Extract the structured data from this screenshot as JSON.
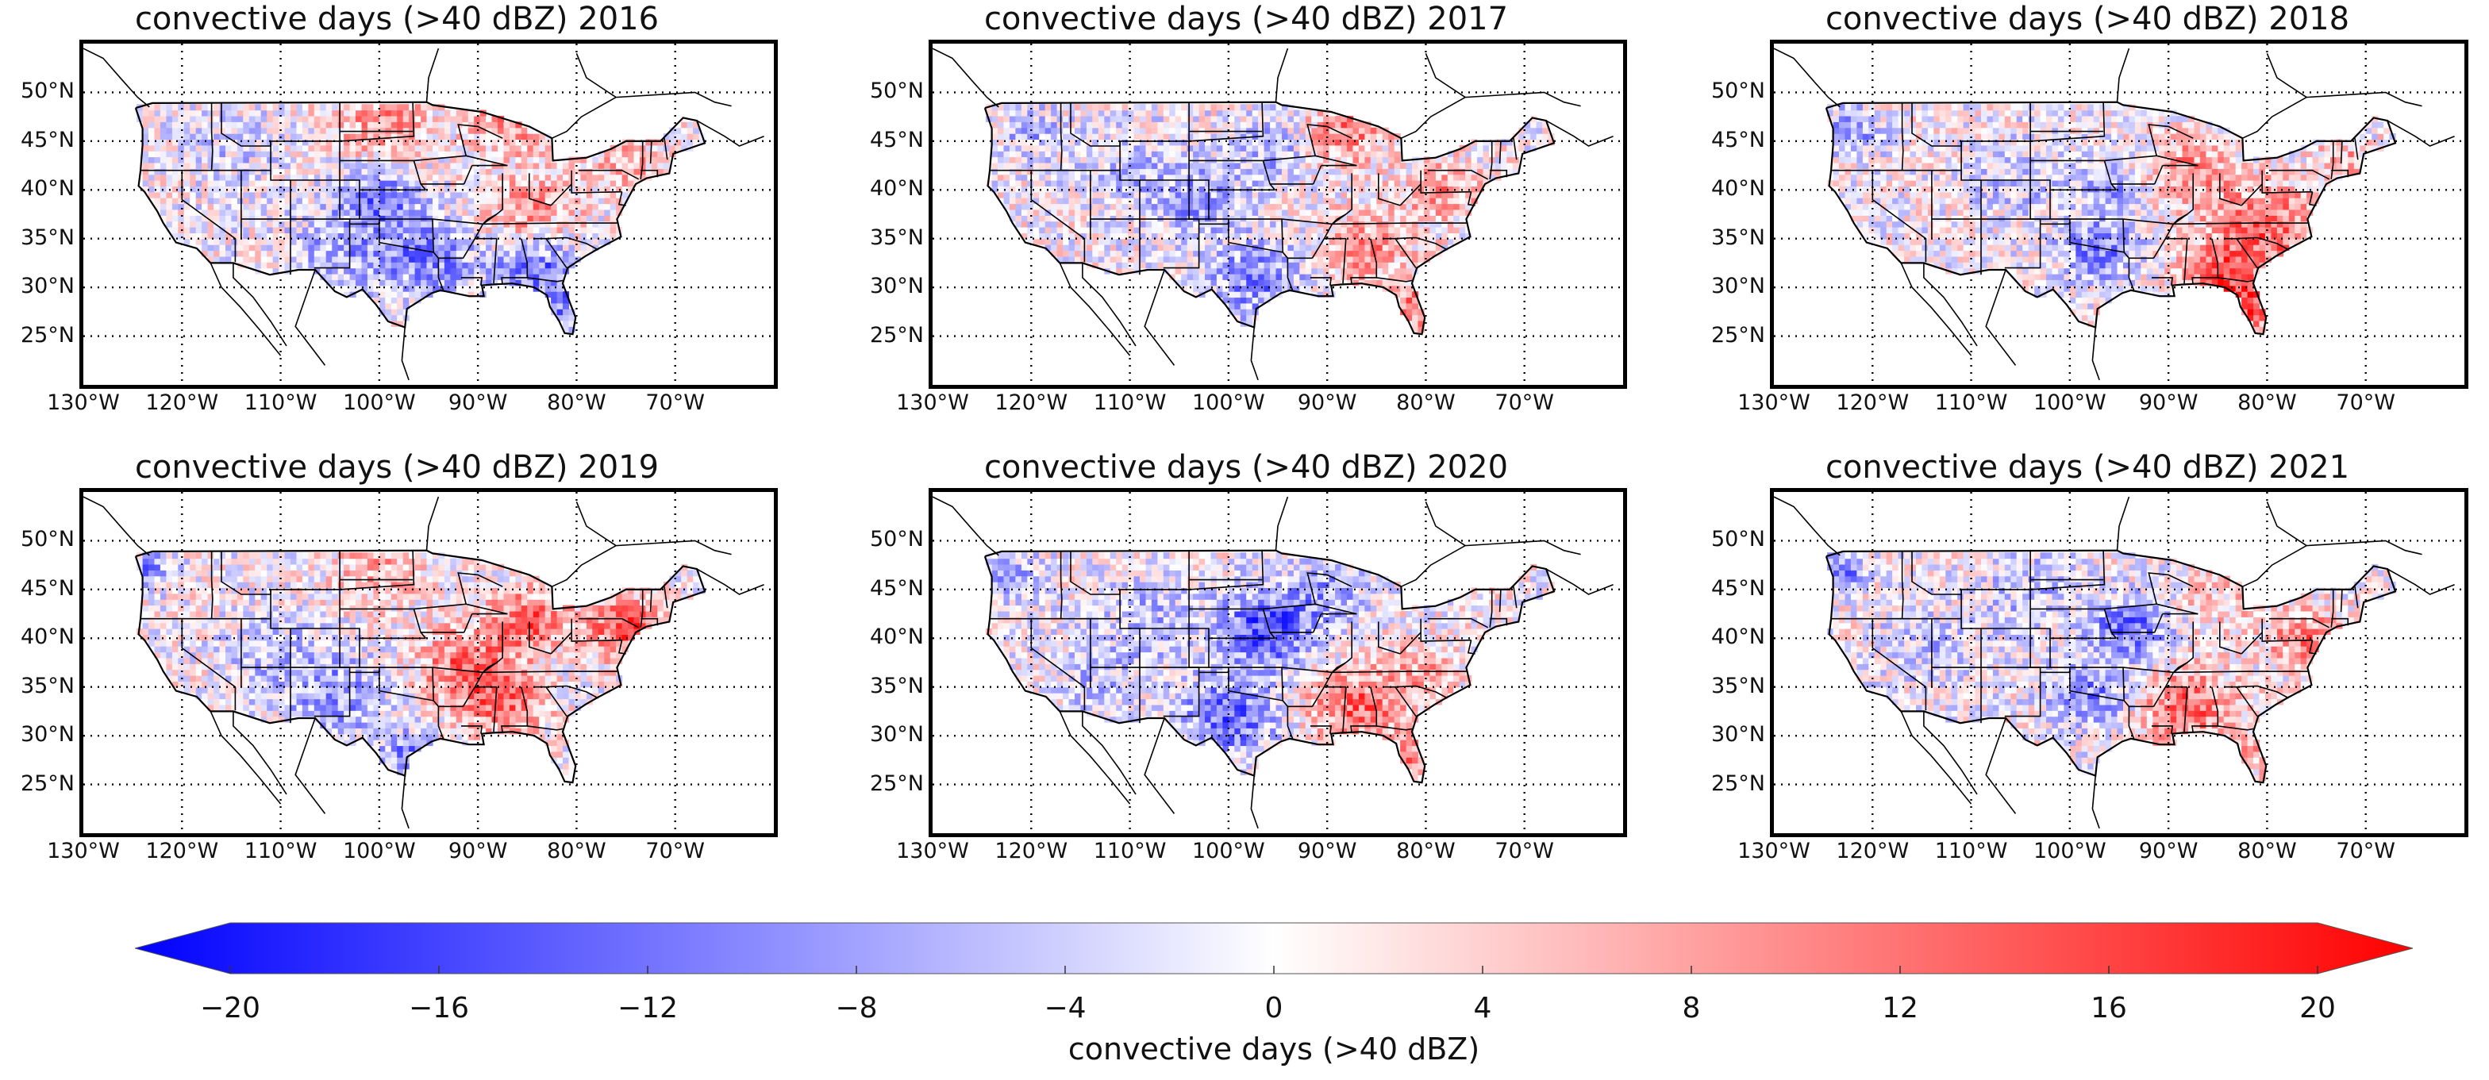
{
  "map": {
    "panels": [
      {
        "title": "convective days (>40 dBZ) 2016",
        "year": 2016
      },
      {
        "title": "convective days (>40 dBZ) 2017",
        "year": 2017
      },
      {
        "title": "convective days (>40 dBZ) 2018",
        "year": 2018
      },
      {
        "title": "convective days (>40 dBZ) 2019",
        "year": 2019
      },
      {
        "title": "convective days (>40 dBZ) 2020",
        "year": 2020
      },
      {
        "title": "convective days (>40 dBZ) 2021",
        "year": 2021
      }
    ],
    "lat_labels": [
      "50°N",
      "45°N",
      "40°N",
      "35°N",
      "30°N",
      "25°N"
    ],
    "lon_labels": [
      "130°W",
      "120°W",
      "110°W",
      "100°W",
      "90°W",
      "80°W",
      "70°W"
    ],
    "lat_range": [
      20,
      55
    ],
    "lon_range": [
      -130,
      -60
    ],
    "colors": {
      "negative": "#0000ff",
      "zero": "#ffffff",
      "positive": "#ff0000",
      "border": "#000000"
    }
  },
  "colorbar": {
    "label": "convective days (>40 dBZ)",
    "ticks": [
      "−20",
      "−16",
      "−12",
      "−8",
      "−4",
      "0",
      "4",
      "8",
      "12",
      "16",
      "20"
    ],
    "range": [
      -20,
      20
    ]
  }
}
